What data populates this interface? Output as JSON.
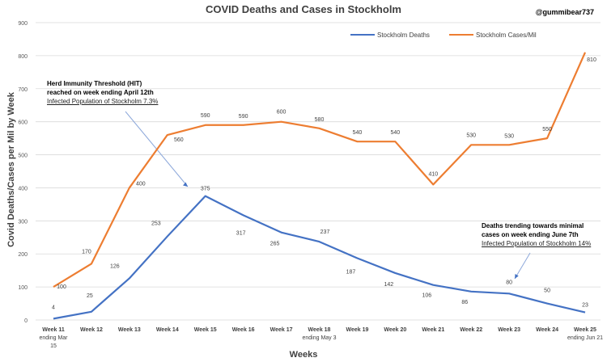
{
  "handle": "@gummibear737",
  "annotations": {
    "hit": {
      "line1": "Herd Immunity Threshold (HIT)",
      "line2": "reached on week ending April 12th",
      "line3": "Infected Population of Stockholm 7.3%"
    },
    "deaths": {
      "line1": "Deaths trending towards minimal",
      "line2": "cases on week ending June 7th",
      "line3": "Infected Population of Stockholm 14%"
    }
  },
  "chart_data": {
    "type": "line",
    "title": "COVID Deaths and Cases in Stockholm",
    "xlabel": "Weeks",
    "ylabel": "Covid Deaths/Cases per Mil by Week",
    "ylim": [
      0,
      900
    ],
    "yticks": [
      0,
      100,
      200,
      300,
      400,
      500,
      600,
      700,
      800,
      900
    ],
    "grid": true,
    "legend_position": "top-right",
    "categories": [
      [
        "Week 11",
        "ending Mar",
        "15"
      ],
      [
        "Week 12"
      ],
      [
        "Week 13"
      ],
      [
        "Week 14"
      ],
      [
        "Week 15"
      ],
      [
        "Week 16"
      ],
      [
        "Week 17"
      ],
      [
        "Week 18",
        "ending May 3"
      ],
      [
        "Week 19"
      ],
      [
        "Week 20"
      ],
      [
        "Week 21"
      ],
      [
        "Week 22"
      ],
      [
        "Week 23"
      ],
      [
        "Week 24"
      ],
      [
        "Week 25",
        "ending Jun 21"
      ]
    ],
    "series": [
      {
        "name": "Stockholm Deaths",
        "color": "#4472C4",
        "values": [
          4,
          25,
          126,
          253,
          375,
          317,
          265,
          237,
          187,
          142,
          106,
          86,
          80,
          50,
          23
        ]
      },
      {
        "name": "Stockholm Cases/Mil",
        "color": "#ED7D31",
        "values": [
          100,
          170,
          400,
          560,
          590,
          590,
          600,
          580,
          540,
          540,
          410,
          530,
          530,
          550,
          810
        ]
      }
    ]
  }
}
